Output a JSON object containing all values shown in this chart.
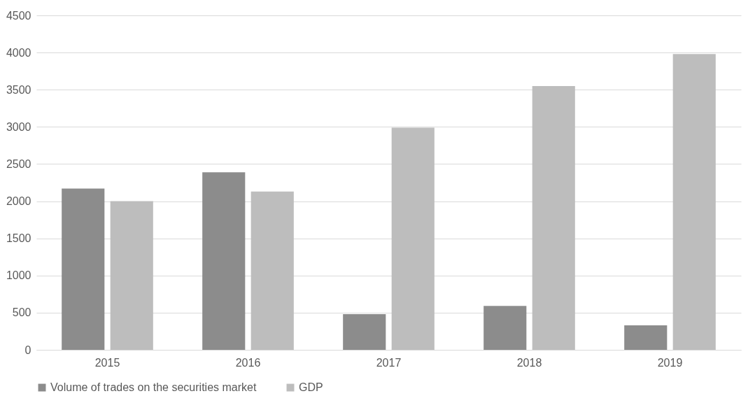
{
  "chart_data": {
    "type": "bar",
    "categories": [
      "2015",
      "2016",
      "2017",
      "2018",
      "2019"
    ],
    "series": [
      {
        "name": "Volume of trades on the securities market",
        "color": "#8c8c8c",
        "values": [
          2170,
          2390,
          480,
          590,
          330
        ]
      },
      {
        "name": "GDP",
        "color": "#bdbdbd",
        "values": [
          2000,
          2130,
          2990,
          3550,
          3980
        ]
      }
    ],
    "ylim": [
      0,
      4500
    ],
    "yticks": [
      0,
      500,
      1000,
      1500,
      2000,
      2500,
      3000,
      3500,
      4000,
      4500
    ],
    "grid": "y",
    "legend": "bottom"
  }
}
